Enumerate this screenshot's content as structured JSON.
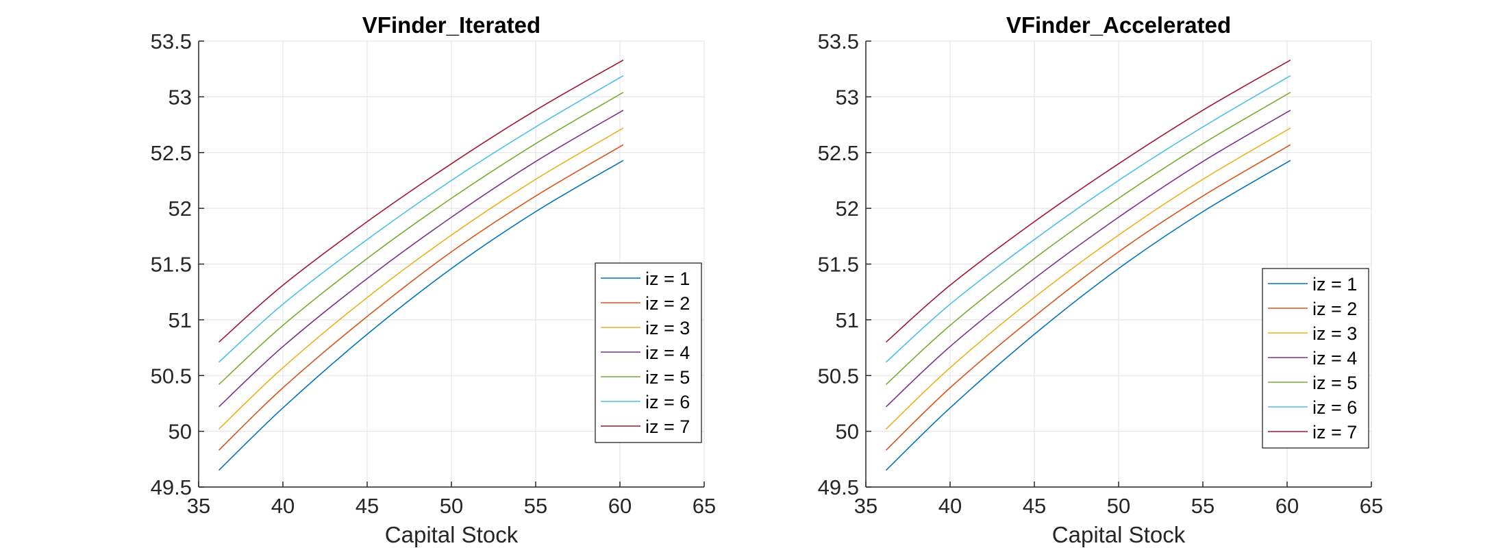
{
  "chart_data": [
    {
      "type": "line",
      "title": "VFinder_Iterated",
      "xlabel": "Capital Stock",
      "ylabel": "",
      "xlim": [
        35,
        65
      ],
      "ylim": [
        49.5,
        53.5
      ],
      "x_ticks": [
        "35",
        "40",
        "45",
        "50",
        "55",
        "60",
        "65"
      ],
      "y_ticks": [
        "49.5",
        "50",
        "50.5",
        "51",
        "51.5",
        "52",
        "52.5",
        "53",
        "53.5"
      ],
      "grid": true,
      "legend_position": "lower-right",
      "x": [
        36.2,
        40,
        45,
        50,
        55,
        60.2
      ],
      "series": [
        {
          "name": "iz = 1",
          "color": "#0072BD",
          "values": [
            49.65,
            50.21,
            50.87,
            51.46,
            51.97,
            52.43
          ]
        },
        {
          "name": "iz = 2",
          "color": "#D95319",
          "values": [
            49.83,
            50.39,
            51.03,
            51.61,
            52.11,
            52.57
          ]
        },
        {
          "name": "iz = 3",
          "color": "#EDB120",
          "values": [
            50.02,
            50.57,
            51.2,
            51.76,
            52.26,
            52.72
          ]
        },
        {
          "name": "iz = 4",
          "color": "#7E2F8E",
          "values": [
            50.22,
            50.76,
            51.37,
            51.92,
            52.42,
            52.88
          ]
        },
        {
          "name": "iz = 5",
          "color": "#77AC30",
          "values": [
            50.42,
            50.95,
            51.55,
            52.09,
            52.58,
            53.04
          ]
        },
        {
          "name": "iz = 6",
          "color": "#4DBEEE",
          "values": [
            50.62,
            51.14,
            51.72,
            52.25,
            52.73,
            53.19
          ]
        },
        {
          "name": "iz = 7",
          "color": "#A2142F",
          "values": [
            50.8,
            51.31,
            51.88,
            52.4,
            52.88,
            53.33
          ]
        }
      ]
    },
    {
      "type": "line",
      "title": "VFinder_Accelerated",
      "xlabel": "Capital Stock",
      "ylabel": "",
      "xlim": [
        35,
        65
      ],
      "ylim": [
        49.5,
        53.5
      ],
      "x_ticks": [
        "35",
        "40",
        "45",
        "50",
        "55",
        "60",
        "65"
      ],
      "y_ticks": [
        "49.5",
        "50",
        "50.5",
        "51",
        "51.5",
        "52",
        "52.5",
        "53",
        "53.5"
      ],
      "grid": true,
      "legend_position": "lower-right",
      "x": [
        36.2,
        40,
        45,
        50,
        55,
        60.2
      ],
      "series": [
        {
          "name": "iz = 1",
          "color": "#0072BD",
          "values": [
            49.65,
            50.21,
            50.87,
            51.46,
            51.97,
            52.43
          ]
        },
        {
          "name": "iz = 2",
          "color": "#D95319",
          "values": [
            49.83,
            50.39,
            51.03,
            51.61,
            52.11,
            52.57
          ]
        },
        {
          "name": "iz = 3",
          "color": "#EDB120",
          "values": [
            50.02,
            50.57,
            51.2,
            51.76,
            52.26,
            52.72
          ]
        },
        {
          "name": "iz = 4",
          "color": "#7E2F8E",
          "values": [
            50.22,
            50.76,
            51.37,
            51.92,
            52.42,
            52.88
          ]
        },
        {
          "name": "iz = 5",
          "color": "#77AC30",
          "values": [
            50.42,
            50.95,
            51.55,
            52.09,
            52.58,
            53.04
          ]
        },
        {
          "name": "iz = 6",
          "color": "#4DBEEE",
          "values": [
            50.62,
            51.14,
            51.72,
            52.25,
            52.73,
            53.19
          ]
        },
        {
          "name": "iz = 7",
          "color": "#A2142F",
          "values": [
            50.8,
            51.31,
            51.88,
            52.4,
            52.88,
            53.33
          ]
        }
      ]
    }
  ]
}
